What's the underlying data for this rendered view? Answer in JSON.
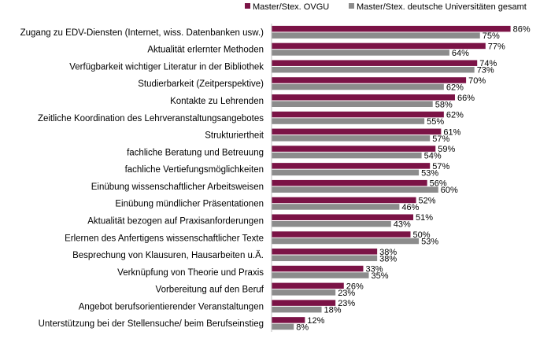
{
  "chart_data": {
    "type": "bar",
    "orientation": "horizontal",
    "categories": [
      "Zugang zu EDV-Diensten (Internet, wiss. Datenbanken usw.)",
      "Aktualität erlernter Methoden",
      "Verfügbarkeit wichtiger Literatur in der Bibliothek",
      "Studierbarkeit (Zeitperspektive)",
      "Kontakte zu Lehrenden",
      "Zeitliche Koordination des Lehrveranstaltungsangebotes",
      "Strukturiertheit",
      "fachliche Beratung und Betreuung",
      "fachliche Vertiefungsmöglichkeiten",
      "Einübung wissenschaftlicher Arbeitsweisen",
      "Einübung mündlicher Präsentationen",
      "Aktualität bezogen auf Praxisanforderungen",
      "Erlernen des Anfertigens wissenschaftlicher Texte",
      "Besprechung von Klausuren, Hausarbeiten u.Ä.",
      "Verknüpfung von Theorie und Praxis",
      "Vorbereitung auf den Beruf",
      "Angebot berufsorientierender Veranstaltungen",
      "Unterstützung bei der Stellensuche/ beim Berufseinstieg"
    ],
    "series": [
      {
        "name": "Master/Stex. OVGU",
        "color": "#7b1346",
        "values": [
          86,
          77,
          74,
          70,
          66,
          62,
          61,
          59,
          57,
          56,
          52,
          51,
          50,
          38,
          33,
          26,
          23,
          12
        ],
        "labels": [
          "86%",
          "77%",
          "74%",
          "70%",
          "66%",
          "62%",
          "61%",
          "59%",
          "57%",
          "56%",
          "52%",
          "51%",
          "50%",
          "38%",
          "33%",
          "26%",
          "23%",
          "12%"
        ]
      },
      {
        "name": "Master/Stex. deutsche Universitäten gesamt",
        "color": "#8c8c8c",
        "values": [
          75,
          64,
          73,
          62,
          58,
          55,
          57,
          54,
          53,
          60,
          46,
          43,
          53,
          38,
          35,
          23,
          18,
          8
        ],
        "labels": [
          "75%",
          "64%",
          "73%",
          "62%",
          "58%",
          "55%",
          "57%",
          "54%",
          "53%",
          "60%",
          "46%",
          "43%",
          "53%",
          "38%",
          "35%",
          "23%",
          "18%",
          "8%"
        ]
      }
    ],
    "xlim": [
      0,
      100
    ],
    "grid": false,
    "legend_position": "top-right"
  }
}
